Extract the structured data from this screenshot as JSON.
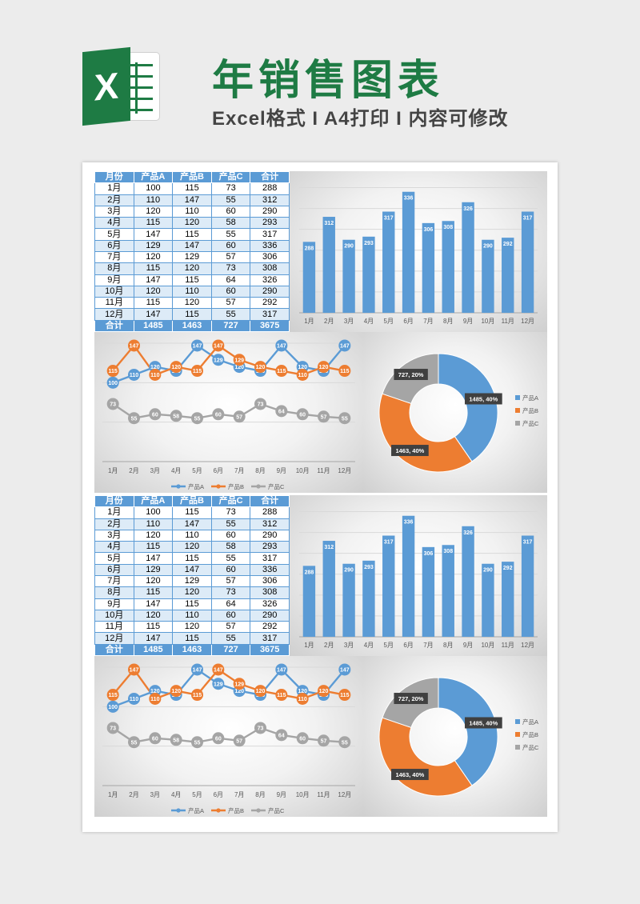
{
  "header": {
    "logo_letter": "X",
    "title": "年销售图表",
    "subtitle": "Excel格式 I A4打印 I 内容可修改"
  },
  "colors": {
    "brand": "#1e7b44",
    "seriesA": "#5b9bd5",
    "seriesB": "#ed7d31",
    "seriesC": "#a5a5a5",
    "band": "#ddebf7"
  },
  "table": {
    "columns": [
      "月份",
      "产品A",
      "产品B",
      "产品C",
      "合计"
    ],
    "rows": [
      [
        "1月",
        "100",
        "115",
        "73",
        "288"
      ],
      [
        "2月",
        "110",
        "147",
        "55",
        "312"
      ],
      [
        "3月",
        "120",
        "110",
        "60",
        "290"
      ],
      [
        "4月",
        "115",
        "120",
        "58",
        "293"
      ],
      [
        "5月",
        "147",
        "115",
        "55",
        "317"
      ],
      [
        "6月",
        "129",
        "147",
        "60",
        "336"
      ],
      [
        "7月",
        "120",
        "129",
        "57",
        "306"
      ],
      [
        "8月",
        "115",
        "120",
        "73",
        "308"
      ],
      [
        "9月",
        "147",
        "115",
        "64",
        "326"
      ],
      [
        "10月",
        "120",
        "110",
        "60",
        "290"
      ],
      [
        "11月",
        "115",
        "120",
        "57",
        "292"
      ],
      [
        "12月",
        "147",
        "115",
        "55",
        "317"
      ]
    ],
    "total": [
      "合计",
      "1485",
      "1463",
      "727",
      "3675"
    ]
  },
  "chart_data": [
    {
      "type": "bar",
      "categories": [
        "1月",
        "2月",
        "3月",
        "4月",
        "5月",
        "6月",
        "7月",
        "8月",
        "9月",
        "10月",
        "11月",
        "12月"
      ],
      "values": [
        288,
        312,
        290,
        293,
        317,
        336,
        306,
        308,
        326,
        290,
        292,
        317
      ],
      "ylim": [
        220,
        345
      ],
      "grid": true,
      "data_labels": true,
      "color": "#5b9bd5"
    },
    {
      "type": "line",
      "categories": [
        "1月",
        "2月",
        "3月",
        "4月",
        "5月",
        "6月",
        "7月",
        "8月",
        "9月",
        "10月",
        "11月",
        "12月"
      ],
      "series": [
        {
          "name": "产品A",
          "values": [
            100,
            110,
            120,
            115,
            147,
            129,
            120,
            115,
            147,
            120,
            115,
            147
          ],
          "color": "#5b9bd5"
        },
        {
          "name": "产品B",
          "values": [
            115,
            147,
            110,
            120,
            115,
            147,
            129,
            120,
            115,
            110,
            120,
            115
          ],
          "color": "#ed7d31"
        },
        {
          "name": "产品C",
          "values": [
            73,
            55,
            60,
            58,
            55,
            60,
            57,
            73,
            64,
            60,
            57,
            55
          ],
          "color": "#a5a5a5"
        }
      ],
      "ylim": [
        0,
        150
      ],
      "legend": "bottom",
      "data_labels": true
    },
    {
      "type": "pie",
      "donut": true,
      "labels": [
        "产品A",
        "产品B",
        "产品C"
      ],
      "values": [
        1485,
        1463,
        727
      ],
      "data_labels": [
        "1485, 40%",
        "1463, 40%",
        "727, 20%"
      ],
      "colors": [
        "#5b9bd5",
        "#ed7d31",
        "#a5a5a5"
      ],
      "legend": "right"
    }
  ]
}
